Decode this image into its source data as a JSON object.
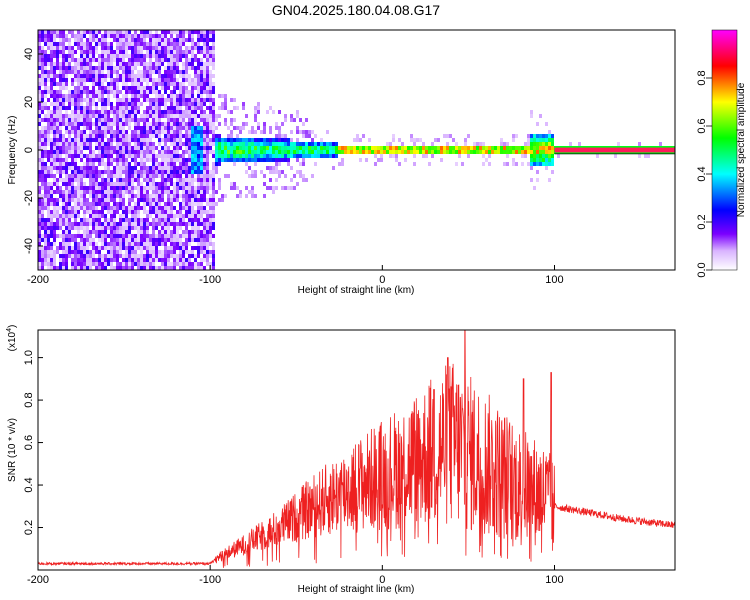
{
  "title": "GN04.2025.180.04.08.G17",
  "chart_data": [
    {
      "type": "heatmap",
      "xlabel": "Height of straight line (km)",
      "ylabel": "Frequency (Hz)",
      "xlim": [
        -200,
        170
      ],
      "ylim": [
        -50,
        50
      ],
      "x_ticks": [
        "-200",
        "-100",
        "0",
        "100"
      ],
      "y_ticks": [
        "40",
        "20",
        "0",
        "-20",
        "-40"
      ],
      "colorbar": {
        "label": "Normalized spectral amplitude",
        "range": [
          0,
          1
        ],
        "ticks": [
          "0.0",
          "0.2",
          "0.4",
          "0.6",
          "0.8"
        ],
        "colors": [
          "#ffffff",
          "#7b00ff",
          "#0000ff",
          "#00ffff",
          "#00ff00",
          "#ffff00",
          "#ff0000",
          "#ff00ff"
        ]
      },
      "regions": [
        {
          "x_start": -200,
          "x_end": -97,
          "description_value": 0.15
        },
        {
          "x_start": -97,
          "x_end": -25,
          "center_freq": 0,
          "value": 0.45
        },
        {
          "x_start": -25,
          "x_end": 90,
          "center_freq": 0,
          "value": 0.85
        },
        {
          "x_start": 90,
          "x_end": 170,
          "center_freq": 0,
          "value": 0.95
        }
      ]
    },
    {
      "type": "line",
      "xlabel": "Height of straight line (km)",
      "ylabel": "SNR (10 * v/v)",
      "y_multiplier": "(x10",
      "y_multiplier_exp": "4",
      "y_multiplier_close": ")",
      "xlim": [
        -200,
        170
      ],
      "ylim": [
        0,
        1.13
      ],
      "x_ticks": [
        "-200",
        "-100",
        "0",
        "100"
      ],
      "y_ticks": [
        "0.2",
        "0.4",
        "0.6",
        "0.8",
        "1.0"
      ],
      "series_color": "#ee2020",
      "envelope_x": [
        -200,
        -100,
        -95,
        -80,
        -60,
        -40,
        -20,
        0,
        20,
        40,
        50,
        60,
        80,
        95,
        100,
        120,
        140,
        170
      ],
      "envelope_y": [
        0.03,
        0.03,
        0.06,
        0.12,
        0.2,
        0.3,
        0.38,
        0.45,
        0.52,
        0.6,
        0.55,
        0.5,
        0.4,
        0.35,
        0.3,
        0.27,
        0.24,
        0.21
      ],
      "peaks": [
        {
          "x": 48,
          "y": 1.13
        },
        {
          "x": 38,
          "y": 1.0
        },
        {
          "x": 98,
          "y": 0.93
        },
        {
          "x": 82,
          "y": 0.9
        },
        {
          "x": 30,
          "y": 0.85
        }
      ]
    }
  ]
}
